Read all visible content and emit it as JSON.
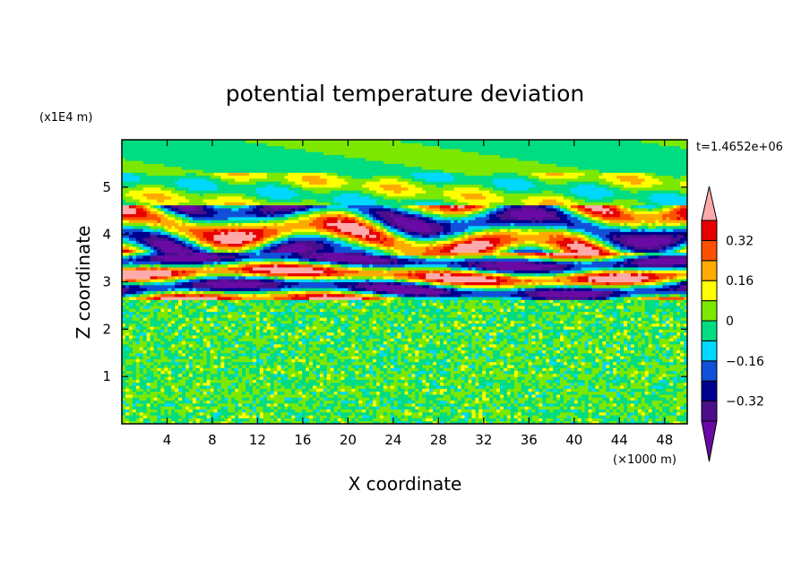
{
  "chart_data": {
    "type": "heatmap",
    "title": "potential temperature deviation",
    "xlabel": "X coordinate",
    "ylabel": "Z coordinate",
    "x_unit": "(×1000 m)",
    "y_unit": "(x1E4 m)",
    "time_label": "t=1.4652e+06",
    "xlim": [
      0,
      50
    ],
    "ylim": [
      0,
      6
    ],
    "x_ticks": [
      4,
      8,
      12,
      16,
      20,
      24,
      28,
      32,
      36,
      40,
      44,
      48
    ],
    "y_ticks": [
      1,
      2,
      3,
      4,
      5
    ],
    "colorbar": {
      "levels": [
        -0.4,
        -0.32,
        -0.24,
        -0.16,
        -0.08,
        0,
        0.08,
        0.16,
        0.24,
        0.32,
        0.4
      ],
      "tick_labels": [
        "0.32",
        "0.16",
        "0",
        "−0.16",
        "−0.32"
      ],
      "tick_values": [
        0.32,
        0.16,
        0,
        -0.16,
        -0.32
      ],
      "colors_low_to_high": [
        "#4b0f8c",
        "#00008e",
        "#1150d8",
        "#00d8ff",
        "#00dc82",
        "#7ce800",
        "#ffff00",
        "#ffaa00",
        "#ff5000",
        "#e80000"
      ],
      "under_color": "#6a0aa4",
      "over_color": "#ffaaaa"
    },
    "bands": [
      {
        "z": [
          0,
          2.6
        ],
        "pattern": "fine noise",
        "values": [
          -0.08,
          0.08
        ]
      },
      {
        "z": [
          2.6,
          3.6
        ],
        "pattern": "strong layered perturbations",
        "values": [
          -0.4,
          0.4
        ]
      },
      {
        "z": [
          3.6,
          4.6
        ],
        "pattern": "wavy perturbations",
        "values": [
          -0.4,
          0.4
        ]
      },
      {
        "z": [
          4.6,
          5.3
        ],
        "pattern": "weak perturbations",
        "values": [
          -0.16,
          0.2
        ]
      },
      {
        "z": [
          5.3,
          6.0
        ],
        "pattern": "near neutral",
        "values": [
          -0.16,
          0.08
        ]
      }
    ]
  }
}
